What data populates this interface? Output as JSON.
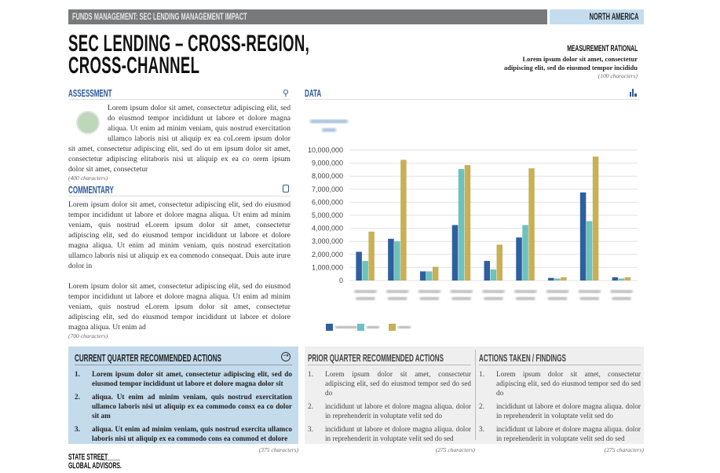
{
  "header": {
    "section": "FUNDS MANAGEMENT: SEC LENDING MANAGEMENT IMPACT",
    "region": "NORTH AMERICA"
  },
  "title": {
    "line1": "SEC LENDING – CROSS-REGION,",
    "line2": "CROSS-CHANNEL"
  },
  "measurement": {
    "heading": "MEASUREMENT RATIONAL",
    "line1": "Lorem ipsum dolor sit amet, consectetur",
    "line2": "adipiscing elit, sed do eiusmod tempor incididu",
    "note": "(100 characters)"
  },
  "assessment": {
    "heading": "ASSESSMENT",
    "icon": "search-icon",
    "status_color": "#bcd8b8",
    "text": "Lorem ipsum dolor sit amet, consectetur adipiscing elit, sed do eiusmod tempor incididunt ut labore et dolore magna aliqua. Ut enim ad minim veniam, quis nostrud exercitation ullamco laboris nisi ut aliquip ex ea coLorem ipsum dolor sit amet, consectetur adipiscing elit, sed do ut em ipsum dolor sit amet, consectetur adipiscing elitaboris nisi ut aliquip ex ea co orem ipsum dolor sit amet, consectetur",
    "note": "(400 characters)"
  },
  "commentary": {
    "heading": "COMMENTARY",
    "icon": "document-icon",
    "p1": "Lorem ipsum dolor sit amet, consectetur adipiscing elit, sed do eiusmod tempor incididunt ut labore et dolore magna aliqua. Ut enim ad minim veniam, quis nostrud eLorem ipsum dolor sit amet, consectetur adipiscing elit, sed do eiusmod tempor incididunt ut labore et dolore magna aliqua. Ut enim ad minim veniam, quis nostrud exercitation ullamco laboris nisi ut aliquip ex ea commodo consequat. Duis aute irure dolor in",
    "p2": "Lorem ipsum dolor sit amet, consectetur adipiscing elit, sed do eiusmod tempor incididunt ut labore et dolore magna aliqua. Ut enim ad minim veniam, quis nostrud eLorem ipsum dolor sit amet, consectetur adipiscing elit, sed do eiusmod tempor incididunt ut labore et dolore magna aliqua. Ut enim ad",
    "note": "(700 characters)"
  },
  "data_section": {
    "heading": "DATA",
    "icon": "bar-chart-icon"
  },
  "chart_data": {
    "type": "bar",
    "ylim": [
      0,
      10000000
    ],
    "yticks": [
      "0",
      "1,000,000",
      "2,000,000",
      "3,000,000",
      "4,000,000",
      "5,000,000",
      "6,000,000",
      "7,000,000",
      "8,000,000",
      "9,000,000",
      "10,000,000"
    ],
    "grid": true,
    "legend": "bottom-left",
    "categories_legible": false,
    "series": [
      {
        "color": "#2f5f9f",
        "values": [
          2200000,
          3200000,
          700000,
          4250000,
          1500000,
          3300000,
          200000,
          6750000,
          250000
        ]
      },
      {
        "color": "#6cc2be",
        "values": [
          1500000,
          3000000,
          700000,
          8550000,
          850000,
          4250000,
          150000,
          4550000,
          150000
        ]
      },
      {
        "color": "#c9af55",
        "values": [
          3750000,
          9250000,
          1050000,
          8850000,
          2750000,
          8600000,
          250000,
          9500000,
          250000
        ]
      }
    ]
  },
  "current_actions": {
    "heading": "CURRENT QUARTER RECOMMENDED ACTIONS",
    "icon": "arrow-right-circle-icon",
    "items": [
      {
        "n": "1.",
        "text": "Lorem ipsum dolor sit amet, consectetur adipiscing elit, sed do eiusmod tempor incididunt ut labore et dolore magna dolor sit"
      },
      {
        "n": "2.",
        "text": "aliqua. Ut enim ad minim veniam, quis nostrud exercitation ullamco laboris nisi ut aliquip ex ea commodo consx ea co dolor sit am"
      },
      {
        "n": "3.",
        "text": "aliqua. Ut enim ad minim veniam, quis nostrud exercita ullamco laboris nisi ut aliquip ex ea commodo cons ea commod et dolore"
      }
    ],
    "note": "(375 characters)"
  },
  "prior_actions": {
    "heading": "PRIOR QUARTER RECOMMENDED ACTIONS",
    "items": [
      {
        "n": "1.",
        "text": "Lorem ipsum dolor sit amet, consectetur adipiscing elit, sed do eiusmod tempor sed do sed do"
      },
      {
        "n": "2.",
        "text": "incididunt ut labore et dolore magna aliqua. dolor in reprehenderit in voluptate velit sed do"
      },
      {
        "n": "3.",
        "text": "incididunt ut labore et dolore magna aliqua. dolor in reprehenderit in voluptate velit sed do sed"
      }
    ],
    "note": "(275 characters)"
  },
  "findings": {
    "heading": "ACTIONS TAKEN / FINDINGS",
    "items": [
      {
        "n": "1.",
        "text": "Lorem ipsum dolor sit amet, consectetur adipiscing elit, sed do eiusmod tempor sed do sed do"
      },
      {
        "n": "2.",
        "text": "incididunt ut labore et dolore magna aliqua. dolor in reprehenderit in voluptate velit sed do"
      },
      {
        "n": "3.",
        "text": "incididunt ut labore et dolore magna aliqua. dolor in reprehenderit in voluptate velit sed do sed"
      }
    ],
    "note": "(275 characters)"
  },
  "logo": {
    "line1": "STATE STREET",
    "line2": "GLOBAL ADVISORS."
  }
}
